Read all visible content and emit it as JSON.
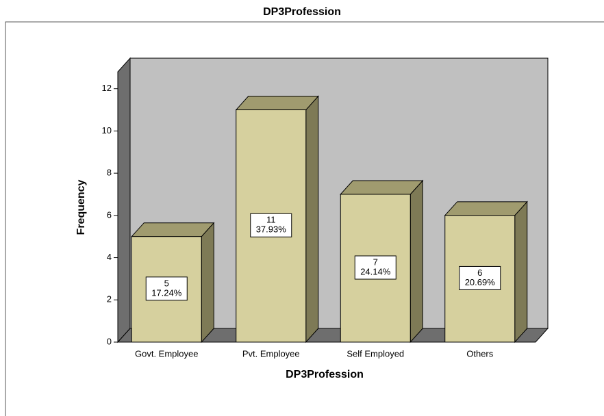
{
  "chart_data": {
    "type": "bar3d",
    "title": "DP3Profession",
    "categories": [
      "Govt. Employee",
      "Pvt. Employee",
      "Self Employed",
      "Others"
    ],
    "values": [
      5,
      11,
      7,
      6
    ],
    "percent_labels": [
      "17.24%",
      "37.93%",
      "24.14%",
      "20.69%"
    ],
    "x_label": "DP3Profession",
    "y_label": "Frequency",
    "color": "#d6d09e",
    "ylim": [
      0,
      12.8
    ],
    "yticks": [
      0,
      2,
      4,
      6,
      8,
      10,
      12
    ]
  }
}
